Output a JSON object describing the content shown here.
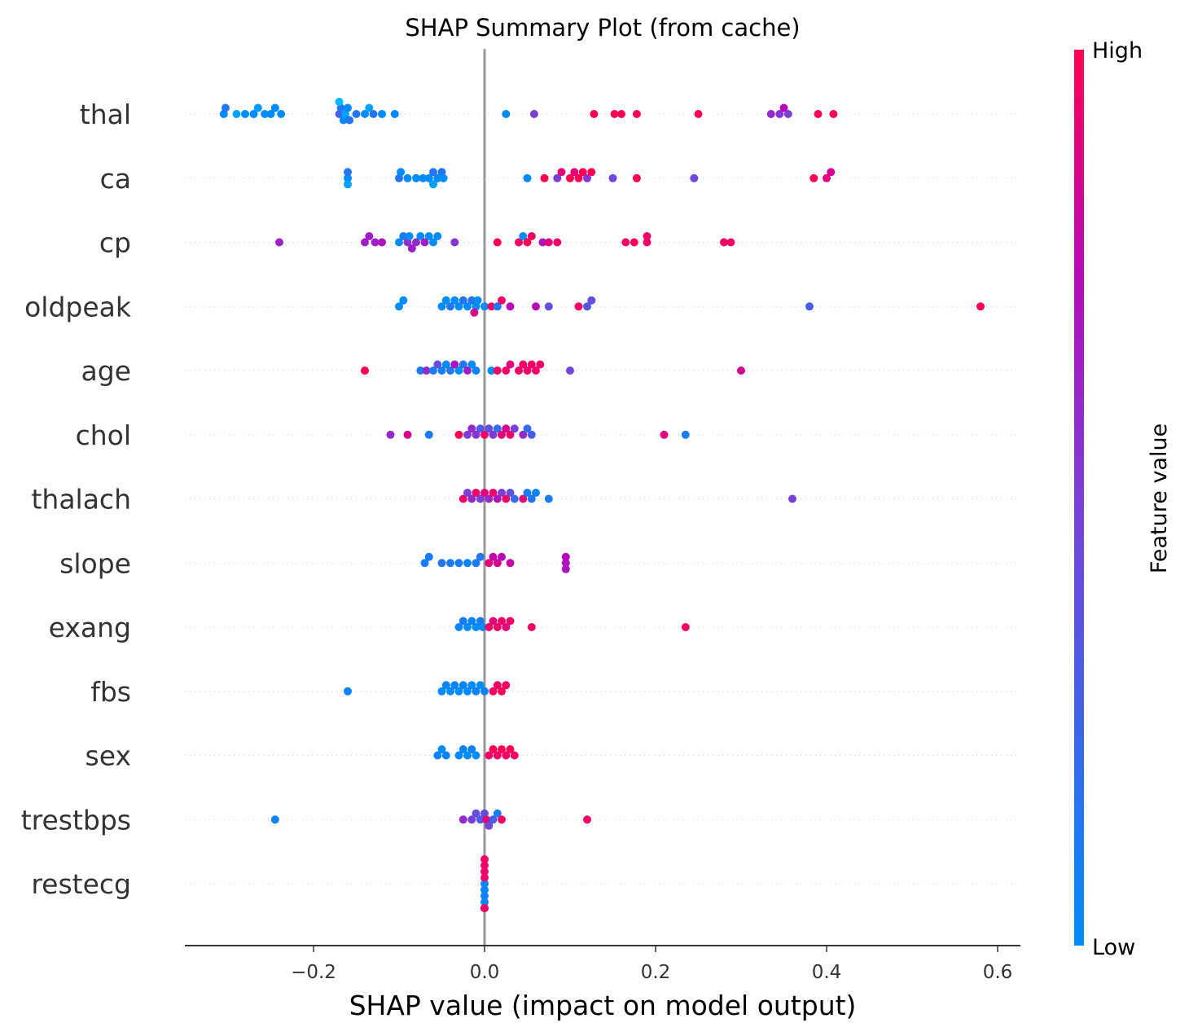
{
  "chart_data": {
    "type": "scatter",
    "title": "SHAP Summary Plot (from cache)",
    "xlabel": "SHAP value (impact on model output)",
    "xlim": [
      -0.35,
      0.62
    ],
    "xticks": [
      {
        "value": -0.2,
        "label": "−0.2"
      },
      {
        "value": 0.0,
        "label": "0.0"
      },
      {
        "value": 0.2,
        "label": "0.2"
      },
      {
        "value": 0.4,
        "label": "0.4"
      },
      {
        "value": 0.6,
        "label": "0.6"
      }
    ],
    "colorbar": {
      "title": "Feature value",
      "high_label": "High",
      "low_label": "Low",
      "low_color": "#008bfb",
      "mid_color": "#b60ab8",
      "high_color": "#ff0052"
    },
    "zero_line_color": "#999999",
    "features": [
      {
        "name": "thal",
        "points": [
          [
            -0.305,
            0.0
          ],
          [
            -0.303,
            0.15
          ],
          [
            -0.29,
            -0.15
          ],
          [
            -0.28,
            0.0
          ],
          [
            -0.27,
            0.0
          ],
          [
            -0.265,
            -0.1
          ],
          [
            -0.257,
            0.0
          ],
          [
            -0.25,
            0.0
          ],
          [
            -0.245,
            0.0
          ],
          [
            -0.238,
            0.0
          ],
          [
            -0.17,
            0.3
          ],
          [
            -0.168,
            0.15
          ],
          [
            -0.165,
            0.0
          ],
          [
            -0.163,
            -0.15
          ],
          [
            -0.17,
            -0.3
          ],
          [
            -0.16,
            0.0
          ],
          [
            -0.158,
            0.15
          ],
          [
            -0.15,
            0.15
          ],
          [
            -0.14,
            0.0
          ],
          [
            -0.135,
            -0.15
          ],
          [
            -0.13,
            0.15
          ],
          [
            -0.12,
            0.0
          ],
          [
            -0.105,
            0.0
          ],
          [
            0.025,
            0.0
          ],
          [
            0.058,
            0.5
          ],
          [
            0.128,
            1.0
          ],
          [
            0.152,
            1.0
          ],
          [
            0.16,
            1.0
          ],
          [
            0.178,
            1.0
          ],
          [
            0.25,
            1.0
          ],
          [
            0.335,
            0.6
          ],
          [
            0.345,
            0.55
          ],
          [
            0.35,
            0.75
          ],
          [
            0.355,
            0.5
          ],
          [
            0.39,
            1.0
          ],
          [
            0.408,
            1.0
          ]
        ]
      },
      {
        "name": "ca",
        "points": [
          [
            -0.16,
            0.0
          ],
          [
            -0.16,
            0.15
          ],
          [
            -0.16,
            -0.15
          ],
          [
            -0.1,
            0.15
          ],
          [
            -0.098,
            0.0
          ],
          [
            -0.09,
            0.0
          ],
          [
            -0.08,
            0.0
          ],
          [
            -0.072,
            0.0
          ],
          [
            -0.065,
            0.0
          ],
          [
            -0.06,
            0.15
          ],
          [
            -0.06,
            -0.15
          ],
          [
            -0.055,
            0.0
          ],
          [
            -0.05,
            0.15
          ],
          [
            -0.048,
            0.0
          ],
          [
            0.05,
            0.0
          ],
          [
            0.07,
            1.0
          ],
          [
            0.085,
            0.5
          ],
          [
            0.09,
            0.9
          ],
          [
            0.1,
            1.0
          ],
          [
            0.105,
            0.9
          ],
          [
            0.11,
            1.0
          ],
          [
            0.115,
            1.0
          ],
          [
            0.12,
            0.55
          ],
          [
            0.125,
            1.0
          ],
          [
            0.15,
            0.45
          ],
          [
            0.178,
            1.0
          ],
          [
            0.245,
            0.45
          ],
          [
            0.385,
            1.0
          ],
          [
            0.4,
            0.9
          ],
          [
            0.405,
            0.85
          ]
        ]
      },
      {
        "name": "cp",
        "points": [
          [
            -0.24,
            0.65
          ],
          [
            -0.14,
            0.65
          ],
          [
            -0.135,
            0.65
          ],
          [
            -0.128,
            0.65
          ],
          [
            -0.12,
            0.7
          ],
          [
            -0.1,
            0.0
          ],
          [
            -0.095,
            0.1
          ],
          [
            -0.09,
            0.55
          ],
          [
            -0.088,
            0.0
          ],
          [
            -0.085,
            0.65
          ],
          [
            -0.08,
            0.6
          ],
          [
            -0.075,
            0.0
          ],
          [
            -0.07,
            0.65
          ],
          [
            -0.065,
            0.0
          ],
          [
            -0.06,
            0.0
          ],
          [
            -0.055,
            0.0
          ],
          [
            -0.035,
            0.55
          ],
          [
            0.015,
            1.0
          ],
          [
            0.04,
            0.95
          ],
          [
            0.045,
            0.0
          ],
          [
            0.05,
            1.0
          ],
          [
            0.055,
            0.95
          ],
          [
            0.068,
            0.7
          ],
          [
            0.075,
            0.9
          ],
          [
            0.085,
            0.95
          ],
          [
            0.165,
            0.95
          ],
          [
            0.175,
            1.0
          ],
          [
            0.19,
            0.95
          ],
          [
            0.19,
            0.95
          ],
          [
            0.28,
            0.95
          ],
          [
            0.288,
            0.95
          ]
        ]
      },
      {
        "name": "oldpeak",
        "points": [
          [
            -0.1,
            0.0
          ],
          [
            -0.095,
            0.0
          ],
          [
            -0.05,
            0.0
          ],
          [
            -0.045,
            0.0
          ],
          [
            -0.04,
            0.15
          ],
          [
            -0.035,
            0.0
          ],
          [
            -0.03,
            0.0
          ],
          [
            -0.025,
            0.15
          ],
          [
            -0.02,
            0.0
          ],
          [
            -0.015,
            0.15
          ],
          [
            -0.01,
            0.0
          ],
          [
            -0.012,
            0.85
          ],
          [
            -0.008,
            0.0
          ],
          [
            0.0,
            0.0
          ],
          [
            0.008,
            0.95
          ],
          [
            0.015,
            0.1
          ],
          [
            0.02,
            0.95
          ],
          [
            0.03,
            0.75
          ],
          [
            0.06,
            0.75
          ],
          [
            0.075,
            0.4
          ],
          [
            0.11,
            0.95
          ],
          [
            0.12,
            0.35
          ],
          [
            0.125,
            0.4
          ],
          [
            0.38,
            0.3
          ],
          [
            0.58,
            1.0
          ]
        ]
      },
      {
        "name": "age",
        "points": [
          [
            -0.14,
            1.0
          ],
          [
            -0.075,
            0.1
          ],
          [
            -0.068,
            0.6
          ],
          [
            -0.06,
            0.1
          ],
          [
            -0.055,
            0.4
          ],
          [
            -0.05,
            0.1
          ],
          [
            -0.045,
            0.0
          ],
          [
            -0.04,
            0.15
          ],
          [
            -0.035,
            0.7
          ],
          [
            -0.03,
            0.0
          ],
          [
            -0.025,
            0.15
          ],
          [
            -0.02,
            0.65
          ],
          [
            -0.015,
            0.0
          ],
          [
            -0.01,
            0.05
          ],
          [
            0.008,
            0.0
          ],
          [
            0.015,
            0.95
          ],
          [
            0.025,
            0.95
          ],
          [
            0.03,
            0.9
          ],
          [
            0.04,
            0.95
          ],
          [
            0.045,
            0.95
          ],
          [
            0.05,
            0.95
          ],
          [
            0.055,
            0.95
          ],
          [
            0.06,
            0.95
          ],
          [
            0.065,
            0.95
          ],
          [
            0.1,
            0.45
          ],
          [
            0.3,
            0.85
          ]
        ]
      },
      {
        "name": "chol",
        "points": [
          [
            -0.11,
            0.6
          ],
          [
            -0.09,
            0.85
          ],
          [
            -0.065,
            0.1
          ],
          [
            -0.03,
            1.0
          ],
          [
            -0.02,
            0.5
          ],
          [
            -0.015,
            0.6
          ],
          [
            -0.01,
            0.55
          ],
          [
            -0.005,
            0.3
          ],
          [
            0.0,
            0.95
          ],
          [
            0.005,
            0.4
          ],
          [
            0.01,
            0.5
          ],
          [
            0.015,
            0.2
          ],
          [
            0.02,
            0.9
          ],
          [
            0.025,
            0.85
          ],
          [
            0.03,
            0.95
          ],
          [
            0.035,
            0.5
          ],
          [
            0.045,
            0.6
          ],
          [
            0.05,
            0.2
          ],
          [
            0.055,
            0.3
          ],
          [
            0.21,
            0.9
          ],
          [
            0.235,
            0.1
          ]
        ]
      },
      {
        "name": "thalach",
        "points": [
          [
            -0.025,
            0.95
          ],
          [
            -0.02,
            0.5
          ],
          [
            -0.015,
            0.6
          ],
          [
            -0.01,
            0.95
          ],
          [
            -0.005,
            0.5
          ],
          [
            0.0,
            0.9
          ],
          [
            0.005,
            0.6
          ],
          [
            0.01,
            0.95
          ],
          [
            0.015,
            0.7
          ],
          [
            0.02,
            0.5
          ],
          [
            0.025,
            0.95
          ],
          [
            0.03,
            0.4
          ],
          [
            0.035,
            0.2
          ],
          [
            0.045,
            0.9
          ],
          [
            0.05,
            0.1
          ],
          [
            0.055,
            0.15
          ],
          [
            0.06,
            0.05
          ],
          [
            0.075,
            0.1
          ],
          [
            0.36,
            0.5
          ]
        ]
      },
      {
        "name": "slope",
        "points": [
          [
            -0.07,
            0.1
          ],
          [
            -0.065,
            0.1
          ],
          [
            -0.05,
            0.15
          ],
          [
            -0.04,
            0.1
          ],
          [
            -0.03,
            0.1
          ],
          [
            -0.02,
            0.05
          ],
          [
            -0.01,
            0.1
          ],
          [
            -0.005,
            0.15
          ],
          [
            0.005,
            0.9
          ],
          [
            0.01,
            0.8
          ],
          [
            0.015,
            0.85
          ],
          [
            0.02,
            0.75
          ],
          [
            0.03,
            0.8
          ],
          [
            0.095,
            0.7
          ],
          [
            0.095,
            0.75
          ],
          [
            0.095,
            0.7
          ]
        ]
      },
      {
        "name": "exang",
        "points": [
          [
            -0.03,
            0.05
          ],
          [
            -0.025,
            0.1
          ],
          [
            -0.02,
            0.0
          ],
          [
            -0.015,
            0.05
          ],
          [
            -0.01,
            0.0
          ],
          [
            -0.005,
            0.1
          ],
          [
            -0.002,
            0.0
          ],
          [
            0.005,
            0.95
          ],
          [
            0.01,
            0.9
          ],
          [
            0.015,
            0.95
          ],
          [
            0.02,
            0.95
          ],
          [
            0.025,
            0.9
          ],
          [
            0.03,
            0.95
          ],
          [
            0.055,
            0.95
          ],
          [
            0.235,
            0.95
          ]
        ]
      },
      {
        "name": "fbs",
        "points": [
          [
            -0.16,
            0.05
          ],
          [
            -0.05,
            0.0
          ],
          [
            -0.045,
            0.05
          ],
          [
            -0.04,
            0.0
          ],
          [
            -0.035,
            0.05
          ],
          [
            -0.03,
            0.0
          ],
          [
            -0.025,
            0.05
          ],
          [
            -0.02,
            0.0
          ],
          [
            -0.015,
            0.0
          ],
          [
            -0.01,
            0.05
          ],
          [
            -0.005,
            0.0
          ],
          [
            0.0,
            0.05
          ],
          [
            0.01,
            0.95
          ],
          [
            0.015,
            0.95
          ],
          [
            0.02,
            1.0
          ],
          [
            0.025,
            0.95
          ]
        ]
      },
      {
        "name": "sex",
        "points": [
          [
            -0.055,
            0.05
          ],
          [
            -0.05,
            0.0
          ],
          [
            -0.045,
            0.05
          ],
          [
            -0.03,
            0.0
          ],
          [
            -0.025,
            0.05
          ],
          [
            -0.02,
            0.0
          ],
          [
            -0.015,
            0.05
          ],
          [
            -0.01,
            0.0
          ],
          [
            0.005,
            0.95
          ],
          [
            0.01,
            1.0
          ],
          [
            0.015,
            0.95
          ],
          [
            0.02,
            1.0
          ],
          [
            0.025,
            0.95
          ],
          [
            0.03,
            1.0
          ],
          [
            0.035,
            0.95
          ]
        ]
      },
      {
        "name": "trestbps",
        "points": [
          [
            -0.245,
            0.05
          ],
          [
            -0.025,
            0.6
          ],
          [
            -0.015,
            0.5
          ],
          [
            -0.01,
            0.4
          ],
          [
            -0.005,
            0.3
          ],
          [
            0.0,
            0.4
          ],
          [
            0.002,
            0.9
          ],
          [
            0.005,
            0.45
          ],
          [
            0.01,
            0.3
          ],
          [
            0.015,
            0.1
          ],
          [
            0.02,
            0.95
          ],
          [
            0.12,
            0.95
          ]
        ]
      },
      {
        "name": "restecg",
        "points": [
          [
            0.0,
            0.05
          ],
          [
            0.0,
            0.95
          ],
          [
            0.0,
            0.05
          ],
          [
            0.0,
            0.95
          ],
          [
            0.0,
            0.05
          ],
          [
            0.0,
            0.95
          ],
          [
            0.0,
            0.05
          ],
          [
            0.0,
            0.95
          ],
          [
            0.0,
            0.05
          ],
          [
            0.0,
            0.95
          ],
          [
            0.0,
            0.05
          ],
          [
            0.0,
            0.95
          ]
        ]
      }
    ]
  }
}
